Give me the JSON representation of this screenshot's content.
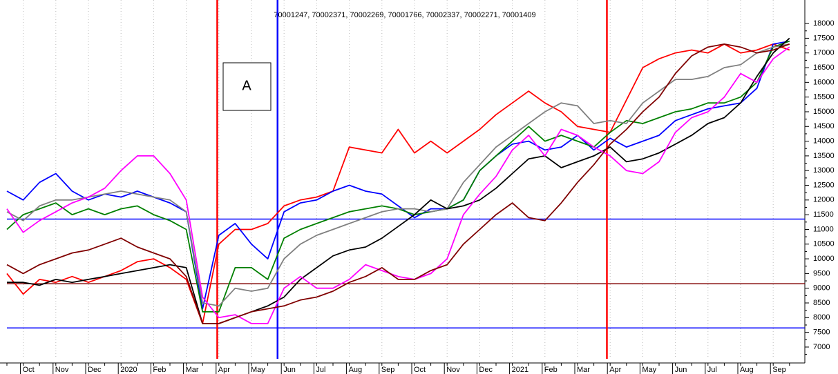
{
  "chart_data": {
    "type": "line",
    "title": "70001247, 70002371, 70002269, 70001766, 70002337, 70002271, 70001409",
    "annotation": "A",
    "categories": [
      null,
      "Oct",
      null,
      "Nov",
      null,
      "Dec",
      null,
      "2020",
      null,
      "Feb",
      null,
      "Mar",
      null,
      "Apr",
      null,
      "May",
      null,
      "Jun",
      null,
      "Jul",
      null,
      "Aug",
      null,
      "Sep",
      null,
      "Oct",
      null,
      "Nov",
      null,
      "Dec",
      null,
      "2021",
      null,
      "Feb",
      null,
      "Mar",
      null,
      "Apr",
      null,
      "May",
      null,
      "Jun",
      null,
      "Jul",
      null,
      "Aug",
      null,
      "Sep",
      null
    ],
    "series": [
      {
        "color": "#ff0000",
        "values": [
          9500,
          8800,
          9300,
          9200,
          9400,
          9200,
          9400,
          9600,
          9900,
          10000,
          9700,
          9300,
          7800,
          10500,
          11000,
          11000,
          11200,
          11800,
          12000,
          12100,
          12300,
          13800,
          13700,
          13600,
          14400,
          13600,
          14000,
          13600,
          14000,
          14400,
          14900,
          15300,
          15700,
          15300,
          15000,
          14500,
          14400,
          14300,
          15400,
          16500,
          16800,
          17000,
          17100,
          17000,
          17300,
          17000,
          17100,
          17300,
          17100
        ]
      },
      {
        "color": "#0000ff",
        "values": [
          12300,
          12000,
          12600,
          12900,
          12300,
          12000,
          12200,
          12100,
          12300,
          12100,
          11900,
          11600,
          8300,
          10800,
          11200,
          10500,
          10000,
          11600,
          11900,
          12000,
          12300,
          12500,
          12300,
          12200,
          11800,
          11400,
          11700,
          11700,
          12000,
          13000,
          13500,
          13900,
          14000,
          13700,
          13800,
          14200,
          13700,
          14100,
          13800,
          14000,
          14200,
          14700,
          14900,
          15100,
          15200,
          15300,
          15800,
          17300,
          17400
        ]
      },
      {
        "color": "#008000",
        "values": [
          11000,
          11500,
          11700,
          11900,
          11500,
          11700,
          11500,
          11700,
          11800,
          11500,
          11300,
          11000,
          8200,
          8200,
          9700,
          9700,
          9300,
          10700,
          11000,
          11200,
          11400,
          11600,
          11700,
          11800,
          11700,
          11500,
          11600,
          11700,
          12000,
          13000,
          13500,
          14000,
          14500,
          14000,
          14200,
          14000,
          13800,
          14300,
          14700,
          14600,
          14800,
          15000,
          15100,
          15300,
          15300,
          15500,
          16000,
          17200,
          17400
        ]
      },
      {
        "color": "#808080",
        "values": [
          11600,
          11300,
          11800,
          12000,
          12000,
          12100,
          12200,
          12300,
          12200,
          12100,
          12000,
          11600,
          8500,
          8400,
          9000,
          8900,
          9000,
          10000,
          10500,
          10800,
          11000,
          11200,
          11400,
          11600,
          11700,
          11700,
          11600,
          11700,
          12600,
          13200,
          13800,
          14200,
          14600,
          15000,
          15300,
          15200,
          14600,
          14700,
          14600,
          15300,
          15700,
          16100,
          16100,
          16200,
          16500,
          16600,
          17000,
          17200,
          17300
        ]
      },
      {
        "color": "#000000",
        "values": [
          9200,
          9200,
          9100,
          9300,
          9200,
          9300,
          9400,
          9500,
          9600,
          9700,
          9800,
          9700,
          7800,
          7800,
          8000,
          8200,
          8400,
          8700,
          9300,
          9700,
          10100,
          10300,
          10400,
          10700,
          11100,
          11500,
          12000,
          11700,
          11800,
          12000,
          12400,
          12900,
          13400,
          13500,
          13100,
          13300,
          13500,
          13800,
          13300,
          13400,
          13600,
          13900,
          14200,
          14600,
          14800,
          15300,
          16200,
          17000,
          17500
        ]
      },
      {
        "color": "#ff00ff",
        "values": [
          11700,
          10900,
          11300,
          11600,
          11900,
          12100,
          12400,
          13000,
          13500,
          13500,
          12900,
          12000,
          8700,
          8000,
          8100,
          7800,
          7800,
          9000,
          9400,
          9000,
          9000,
          9300,
          9800,
          9600,
          9400,
          9300,
          9500,
          10000,
          11500,
          12200,
          12800,
          13700,
          14200,
          13500,
          14400,
          14200,
          13800,
          13500,
          13000,
          12900,
          13300,
          14300,
          14800,
          15000,
          15500,
          16300,
          16000,
          16800,
          17200
        ]
      },
      {
        "color": "#800000",
        "values": [
          9800,
          9500,
          9800,
          10000,
          10200,
          10300,
          10500,
          10700,
          10400,
          10200,
          10000,
          9400,
          7800,
          7800,
          8000,
          8200,
          8300,
          8400,
          8600,
          8700,
          8900,
          9200,
          9400,
          9700,
          9300,
          9300,
          9600,
          9800,
          10500,
          11000,
          11500,
          11900,
          11400,
          11300,
          11900,
          12600,
          13200,
          13900,
          14400,
          15000,
          15500,
          16300,
          16900,
          17200,
          17300,
          17200,
          17000,
          17100,
          17300
        ]
      }
    ],
    "ylim": [
      6600,
      18800
    ],
    "yticks": [
      7000,
      7500,
      8000,
      8500,
      9000,
      9500,
      10000,
      10500,
      11000,
      11500,
      12000,
      12500,
      13000,
      13500,
      14000,
      14500,
      15000,
      15500,
      16000,
      16500,
      17000,
      17500,
      18000
    ],
    "hlines": [
      {
        "value": 11350,
        "color": "#0000ff"
      },
      {
        "value": 9150,
        "color": "#800000"
      },
      {
        "value": 7650,
        "color": "#0000ff"
      }
    ],
    "vlines": [
      {
        "x": 12.9,
        "color": "#ff0000"
      },
      {
        "x": 16.6,
        "color": "#0000ff"
      },
      {
        "x": 36.8,
        "color": "#ff0000"
      }
    ],
    "grid": true
  }
}
